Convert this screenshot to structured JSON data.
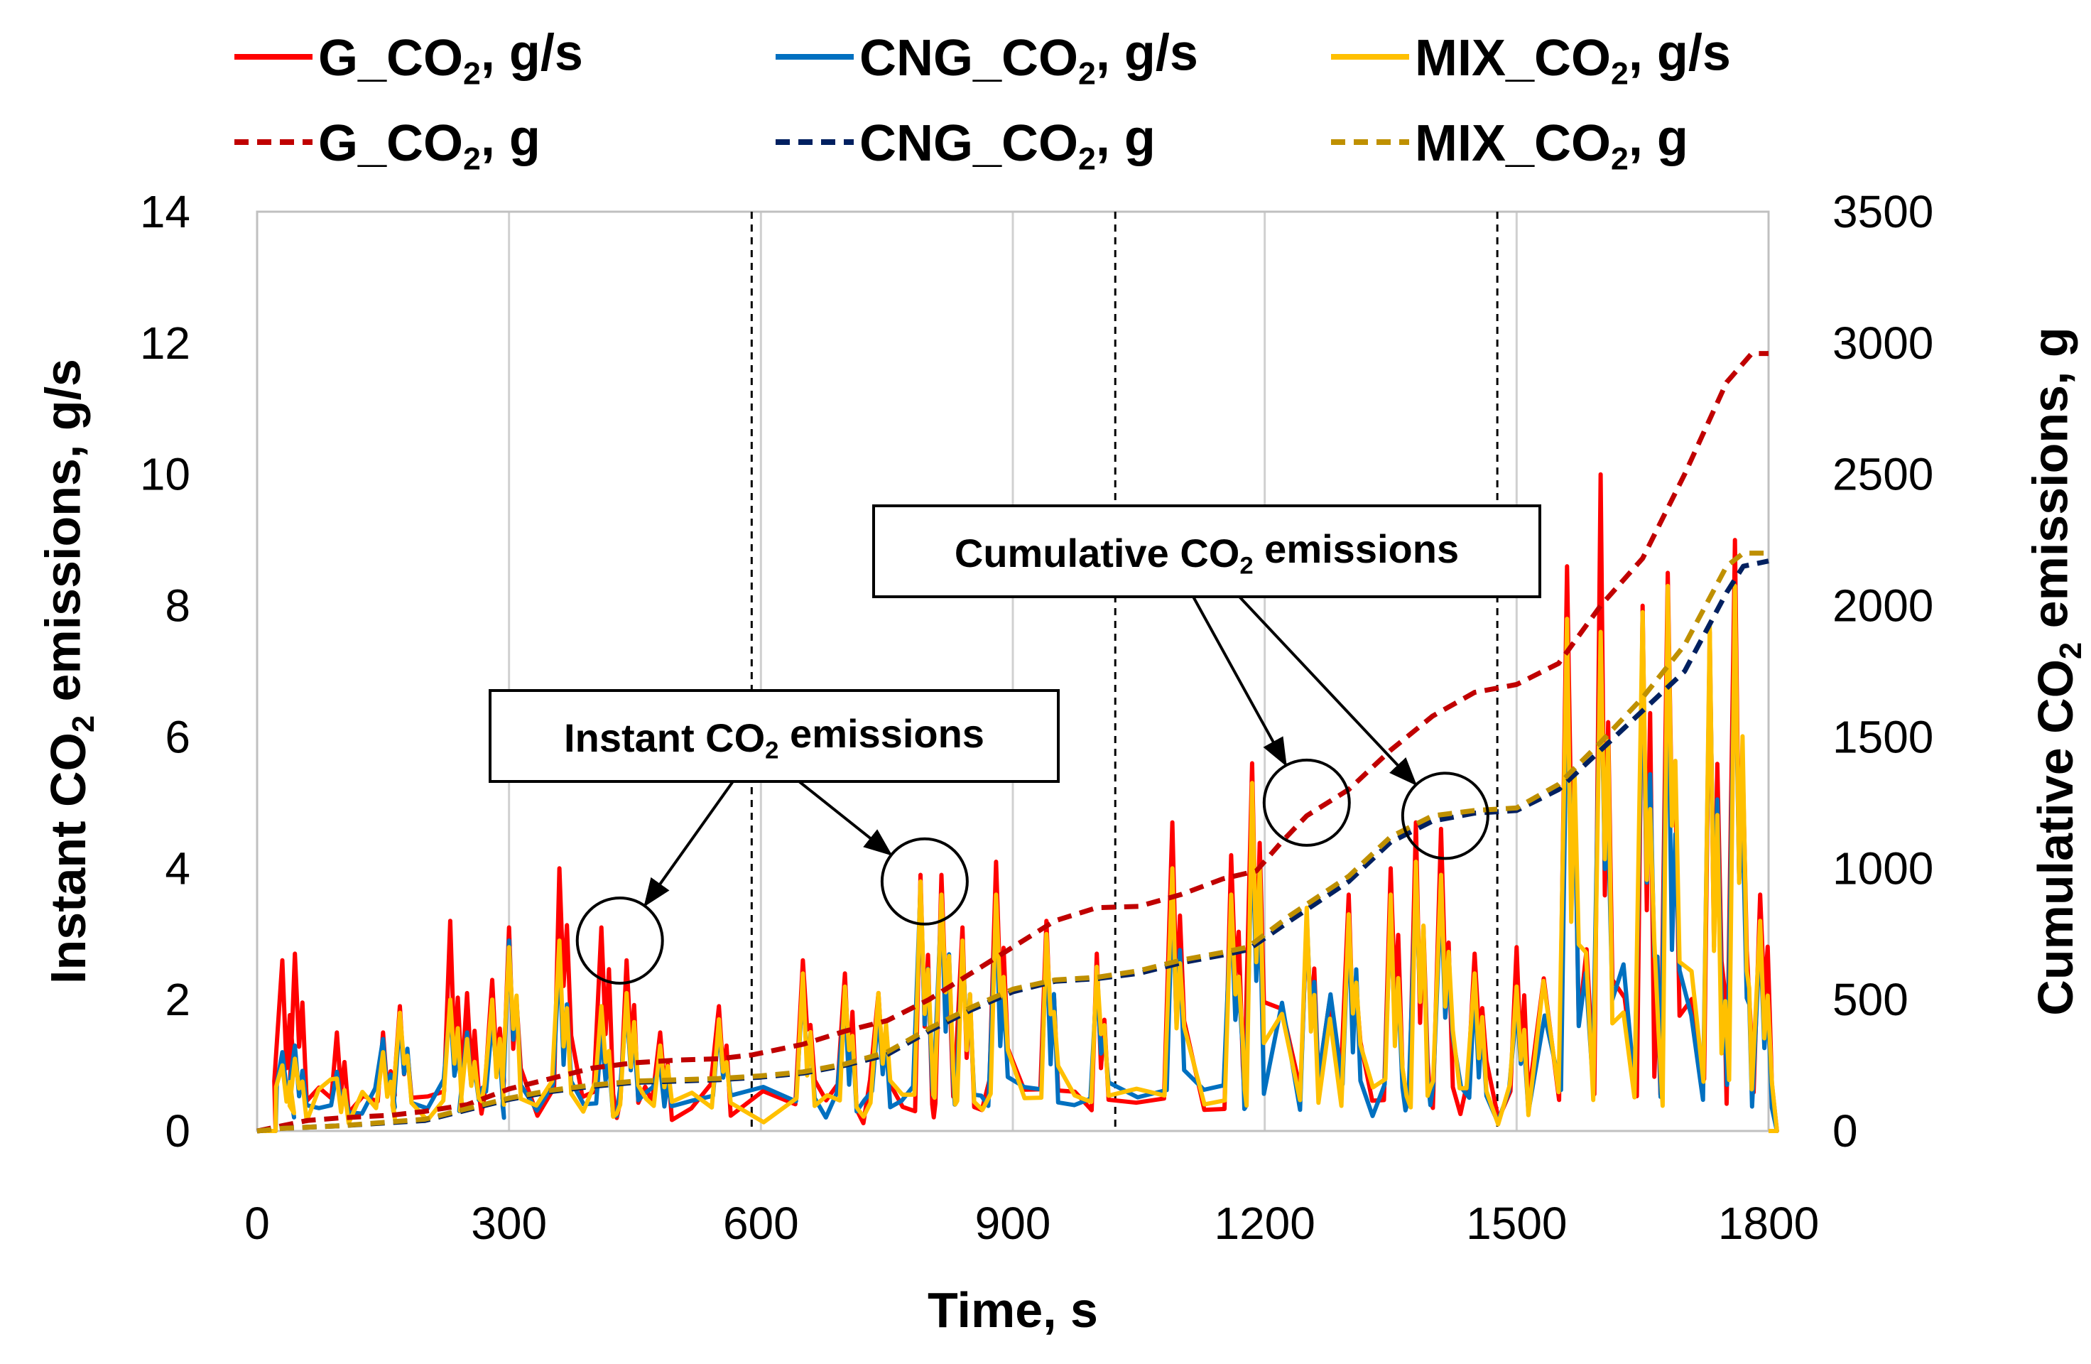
{
  "chart_data": {
    "type": "line",
    "xlabel": "Time, s",
    "ylabel_left": "Instant CO2 emissions, g/s",
    "ylabel_right": "Cumulative CO2 emissions, g",
    "x_range": [
      0,
      1800
    ],
    "x_ticks": [
      "0",
      "300",
      "600",
      "900",
      "1200",
      "1500",
      "1800"
    ],
    "y_left_range": [
      0,
      14
    ],
    "y_left_ticks": [
      "0",
      "2",
      "4",
      "6",
      "8",
      "10",
      "12",
      "14"
    ],
    "y_right_range": [
      0,
      3500
    ],
    "y_right_ticks": [
      "0",
      "500",
      "1000",
      "1500",
      "2000",
      "2500",
      "3000",
      "3500"
    ],
    "phase_boundaries_x": [
      589,
      1022,
      1477
    ],
    "grid": "vertical",
    "legend": {
      "placement": "top",
      "entries": [
        {
          "name": "G_CO2, g/s",
          "color": "#ff0000",
          "style": "solid"
        },
        {
          "name": "CNG_CO2, g/s",
          "color": "#0070c0",
          "style": "solid"
        },
        {
          "name": "MIX_CO2, g/s",
          "color": "#ffc000",
          "style": "solid"
        },
        {
          "name": "G_CO2, g",
          "color": "#c00000",
          "style": "dashed"
        },
        {
          "name": "CNG_CO2, g",
          "color": "#002060",
          "style": "dashed"
        },
        {
          "name": "MIX_CO2, g",
          "color": "#bf9000",
          "style": "dashed"
        }
      ]
    },
    "annotations": [
      {
        "text": "Instant CO2 emissions",
        "targets_x": [
          432,
          795
        ],
        "targets_y_left": [
          2.9,
          3.8
        ]
      },
      {
        "text": "Cumulative CO2 emissions",
        "targets_x": [
          1250,
          1415
        ],
        "targets_y_left": [
          5.0,
          4.8
        ]
      }
    ],
    "series_instant": [
      {
        "name": "G_CO2, g/s",
        "color": "#ff0000",
        "peaks": [
          [
            30,
            2.6
          ],
          [
            45,
            2.7
          ],
          [
            95,
            1.5
          ],
          [
            150,
            1.5
          ],
          [
            170,
            1.9
          ],
          [
            230,
            3.2
          ],
          [
            250,
            2.1
          ],
          [
            280,
            2.3
          ],
          [
            300,
            3.1
          ],
          [
            360,
            4.0
          ],
          [
            410,
            3.1
          ],
          [
            440,
            2.6
          ],
          [
            480,
            1.5
          ],
          [
            550,
            1.9
          ],
          [
            650,
            2.6
          ],
          [
            700,
            2.4
          ],
          [
            740,
            2.1
          ],
          [
            790,
            3.9
          ],
          [
            815,
            3.9
          ],
          [
            840,
            3.1
          ],
          [
            880,
            4.1
          ],
          [
            940,
            3.2
          ],
          [
            1000,
            2.7
          ],
          [
            1090,
            4.7
          ],
          [
            1160,
            4.2
          ],
          [
            1185,
            5.6
          ],
          [
            1250,
            3.2
          ],
          [
            1300,
            3.6
          ],
          [
            1350,
            4.0
          ],
          [
            1380,
            4.7
          ],
          [
            1410,
            4.6
          ],
          [
            1450,
            2.7
          ],
          [
            1500,
            2.8
          ],
          [
            1560,
            8.6
          ],
          [
            1600,
            10.0
          ],
          [
            1650,
            8.0
          ],
          [
            1680,
            8.5
          ],
          [
            1730,
            7.6
          ],
          [
            1760,
            9.0
          ],
          [
            1790,
            3.6
          ]
        ]
      },
      {
        "name": "CNG_CO2, g/s",
        "color": "#0070c0",
        "peaks": [
          [
            30,
            1.2
          ],
          [
            45,
            1.3
          ],
          [
            95,
            0.9
          ],
          [
            150,
            1.4
          ],
          [
            170,
            1.7
          ],
          [
            230,
            1.9
          ],
          [
            250,
            1.5
          ],
          [
            280,
            1.7
          ],
          [
            300,
            2.9
          ],
          [
            360,
            2.7
          ],
          [
            410,
            1.5
          ],
          [
            440,
            1.9
          ],
          [
            480,
            1.0
          ],
          [
            550,
            1.6
          ],
          [
            650,
            2.2
          ],
          [
            700,
            2.0
          ],
          [
            740,
            1.8
          ],
          [
            790,
            3.7
          ],
          [
            815,
            3.5
          ],
          [
            840,
            2.8
          ],
          [
            880,
            3.4
          ],
          [
            940,
            2.9
          ],
          [
            1000,
            2.3
          ],
          [
            1090,
            3.6
          ],
          [
            1160,
            3.4
          ],
          [
            1185,
            4.7
          ],
          [
            1250,
            3.3
          ],
          [
            1300,
            3.2
          ],
          [
            1350,
            3.4
          ],
          [
            1380,
            3.8
          ],
          [
            1410,
            3.6
          ],
          [
            1450,
            2.2
          ],
          [
            1500,
            1.9
          ],
          [
            1560,
            7.0
          ],
          [
            1600,
            7.5
          ],
          [
            1650,
            7.2
          ],
          [
            1680,
            7.3
          ],
          [
            1730,
            7.4
          ],
          [
            1760,
            7.8
          ],
          [
            1790,
            3.0
          ]
        ]
      },
      {
        "name": "MIX_CO2, g/s",
        "color": "#ffc000",
        "peaks": [
          [
            30,
            1.0
          ],
          [
            45,
            1.1
          ],
          [
            95,
            0.8
          ],
          [
            150,
            1.2
          ],
          [
            170,
            1.8
          ],
          [
            230,
            2.0
          ],
          [
            250,
            1.4
          ],
          [
            280,
            2.0
          ],
          [
            300,
            2.8
          ],
          [
            360,
            2.9
          ],
          [
            410,
            1.9
          ],
          [
            440,
            2.1
          ],
          [
            480,
            1.3
          ],
          [
            550,
            1.7
          ],
          [
            650,
            2.4
          ],
          [
            700,
            2.2
          ],
          [
            740,
            2.1
          ],
          [
            790,
            3.8
          ],
          [
            815,
            3.6
          ],
          [
            840,
            2.9
          ],
          [
            880,
            3.6
          ],
          [
            940,
            3.0
          ],
          [
            1000,
            2.5
          ],
          [
            1090,
            4.0
          ],
          [
            1160,
            3.6
          ],
          [
            1185,
            5.3
          ],
          [
            1250,
            3.4
          ],
          [
            1300,
            3.3
          ],
          [
            1350,
            3.6
          ],
          [
            1380,
            4.1
          ],
          [
            1410,
            3.9
          ],
          [
            1450,
            2.4
          ],
          [
            1500,
            2.2
          ],
          [
            1560,
            7.8
          ],
          [
            1600,
            7.6
          ],
          [
            1650,
            7.9
          ],
          [
            1680,
            8.3
          ],
          [
            1730,
            7.7
          ],
          [
            1760,
            8.3
          ],
          [
            1790,
            3.2
          ]
        ]
      }
    ],
    "series_cumulative": [
      {
        "name": "G_CO2, g",
        "color": "#c00000",
        "points": [
          [
            0,
            0
          ],
          [
            30,
            20
          ],
          [
            60,
            40
          ],
          [
            100,
            50
          ],
          [
            160,
            60
          ],
          [
            200,
            75
          ],
          [
            250,
            100
          ],
          [
            300,
            160
          ],
          [
            350,
            200
          ],
          [
            400,
            240
          ],
          [
            450,
            260
          ],
          [
            500,
            270
          ],
          [
            550,
            275
          ],
          [
            590,
            290
          ],
          [
            650,
            330
          ],
          [
            700,
            380
          ],
          [
            750,
            420
          ],
          [
            800,
            500
          ],
          [
            850,
            600
          ],
          [
            900,
            700
          ],
          [
            950,
            800
          ],
          [
            1000,
            850
          ],
          [
            1050,
            855
          ],
          [
            1100,
            900
          ],
          [
            1150,
            960
          ],
          [
            1190,
            990
          ],
          [
            1220,
            1100
          ],
          [
            1250,
            1200
          ],
          [
            1300,
            1300
          ],
          [
            1350,
            1450
          ],
          [
            1400,
            1580
          ],
          [
            1450,
            1670
          ],
          [
            1500,
            1700
          ],
          [
            1550,
            1780
          ],
          [
            1600,
            2000
          ],
          [
            1650,
            2180
          ],
          [
            1700,
            2500
          ],
          [
            1750,
            2850
          ],
          [
            1780,
            2960
          ],
          [
            1800,
            2960
          ]
        ]
      },
      {
        "name": "CNG_CO2, g",
        "color": "#002060",
        "points": [
          [
            0,
            0
          ],
          [
            30,
            10
          ],
          [
            100,
            20
          ],
          [
            200,
            40
          ],
          [
            300,
            120
          ],
          [
            350,
            150
          ],
          [
            400,
            170
          ],
          [
            450,
            185
          ],
          [
            500,
            190
          ],
          [
            550,
            195
          ],
          [
            600,
            205
          ],
          [
            650,
            220
          ],
          [
            700,
            250
          ],
          [
            750,
            290
          ],
          [
            800,
            380
          ],
          [
            850,
            460
          ],
          [
            900,
            530
          ],
          [
            950,
            570
          ],
          [
            1000,
            580
          ],
          [
            1050,
            600
          ],
          [
            1100,
            640
          ],
          [
            1150,
            670
          ],
          [
            1180,
            690
          ],
          [
            1230,
            800
          ],
          [
            1300,
            950
          ],
          [
            1350,
            1100
          ],
          [
            1400,
            1180
          ],
          [
            1450,
            1210
          ],
          [
            1500,
            1220
          ],
          [
            1550,
            1300
          ],
          [
            1600,
            1450
          ],
          [
            1650,
            1600
          ],
          [
            1700,
            1750
          ],
          [
            1750,
            2050
          ],
          [
            1770,
            2150
          ],
          [
            1800,
            2170
          ]
        ]
      },
      {
        "name": "MIX_CO2, g",
        "color": "#bf9000",
        "points": [
          [
            0,
            0
          ],
          [
            30,
            10
          ],
          [
            100,
            20
          ],
          [
            200,
            45
          ],
          [
            300,
            125
          ],
          [
            350,
            155
          ],
          [
            400,
            175
          ],
          [
            450,
            190
          ],
          [
            500,
            195
          ],
          [
            550,
            200
          ],
          [
            600,
            210
          ],
          [
            650,
            225
          ],
          [
            700,
            255
          ],
          [
            750,
            300
          ],
          [
            800,
            390
          ],
          [
            850,
            470
          ],
          [
            900,
            540
          ],
          [
            950,
            575
          ],
          [
            1000,
            585
          ],
          [
            1050,
            610
          ],
          [
            1100,
            650
          ],
          [
            1150,
            680
          ],
          [
            1180,
            700
          ],
          [
            1230,
            820
          ],
          [
            1300,
            970
          ],
          [
            1350,
            1120
          ],
          [
            1400,
            1200
          ],
          [
            1450,
            1220
          ],
          [
            1500,
            1230
          ],
          [
            1550,
            1320
          ],
          [
            1600,
            1480
          ],
          [
            1650,
            1650
          ],
          [
            1700,
            1850
          ],
          [
            1750,
            2150
          ],
          [
            1770,
            2200
          ],
          [
            1800,
            2200
          ]
        ]
      }
    ]
  }
}
